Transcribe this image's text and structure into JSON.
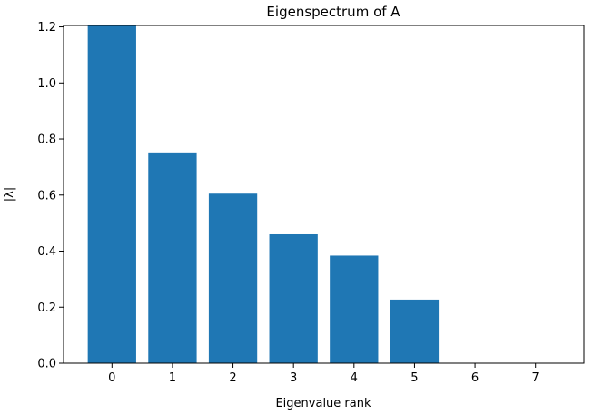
{
  "chart_data": {
    "type": "bar",
    "title": "Eigenspectrum of A",
    "xlabel": "Eigenvalue rank",
    "ylabel": "|λ|",
    "categories": [
      "0",
      "1",
      "2",
      "3",
      "4",
      "5",
      "6",
      "7"
    ],
    "x": [
      0,
      1,
      2,
      3,
      4,
      5,
      6,
      7
    ],
    "values": [
      1.205,
      0.752,
      0.605,
      0.46,
      0.384,
      0.227,
      0.0,
      0.0
    ],
    "bar_widths": [
      0.8,
      0.8,
      0.8,
      0.8,
      0.8,
      0.8,
      0.8,
      0.8
    ],
    "ylim": [
      0,
      1.205
    ],
    "xlim": [
      -0.8,
      7.8
    ],
    "yticks": [
      0.0,
      0.2,
      0.4,
      0.6,
      0.8,
      1.0,
      1.2
    ],
    "ytick_labels": [
      "0.0",
      "0.2",
      "0.4",
      "0.6",
      "0.8",
      "1.0",
      "1.2"
    ],
    "xticks": [
      0,
      1,
      2,
      3,
      4,
      5,
      6,
      7
    ],
    "xtick_labels": [
      "0",
      "1",
      "2",
      "3",
      "4",
      "5",
      "6",
      "7"
    ],
    "grid": false,
    "legend": "none",
    "bar_color": "#1f77b4"
  }
}
